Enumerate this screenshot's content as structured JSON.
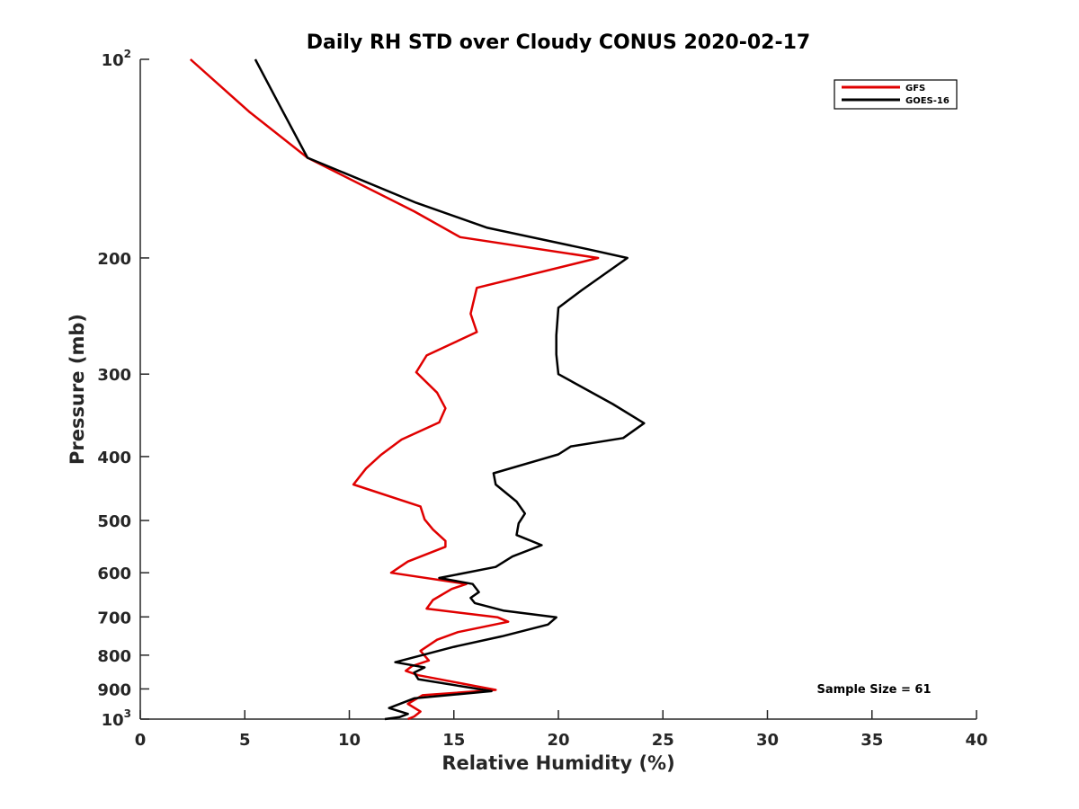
{
  "chart_data": {
    "type": "line",
    "title": "Daily RH STD over Cloudy CONUS 2020-02-17",
    "xlabel": "Relative Humidity (%)",
    "ylabel": "Pressure (mb)",
    "xlim": [
      0,
      40
    ],
    "ylim": [
      100,
      1000
    ],
    "y_scale": "log",
    "y_reversed": true,
    "grid": false,
    "legend_position": "top-right",
    "x_ticks": [
      0,
      5,
      10,
      15,
      20,
      25,
      30,
      35,
      40
    ],
    "x_tick_labels": [
      "0",
      "5",
      "10",
      "15",
      "20",
      "25",
      "30",
      "35",
      "40"
    ],
    "y_ticks": [
      {
        "value": 100,
        "base": "10",
        "exp": "2"
      },
      {
        "value": 200,
        "label": "200"
      },
      {
        "value": 300,
        "label": "300"
      },
      {
        "value": 400,
        "label": "400"
      },
      {
        "value": 500,
        "label": "500"
      },
      {
        "value": 600,
        "label": "600"
      },
      {
        "value": 700,
        "label": "700"
      },
      {
        "value": 800,
        "label": "800"
      },
      {
        "value": 900,
        "label": "900"
      },
      {
        "value": 1000,
        "base": "10",
        "exp": "3"
      }
    ],
    "annotation": "Sample Size = 61",
    "series": [
      {
        "name": "GFS",
        "color": "#e00000",
        "points": [
          [
            2.4,
            100
          ],
          [
            5.2,
            120
          ],
          [
            8.0,
            141
          ],
          [
            13.1,
            170
          ],
          [
            15.3,
            186
          ],
          [
            21.9,
            200
          ],
          [
            16.1,
            222
          ],
          [
            15.8,
            243
          ],
          [
            16.1,
            259
          ],
          [
            13.7,
            281
          ],
          [
            13.2,
            298
          ],
          [
            14.2,
            320
          ],
          [
            14.6,
            338
          ],
          [
            14.3,
            355
          ],
          [
            12.5,
            377
          ],
          [
            11.5,
            398
          ],
          [
            10.8,
            417
          ],
          [
            10.2,
            441
          ],
          [
            13.4,
            476
          ],
          [
            13.6,
            498
          ],
          [
            14.0,
            516
          ],
          [
            14.6,
            537
          ],
          [
            14.6,
            548
          ],
          [
            12.8,
            577
          ],
          [
            12.0,
            600
          ],
          [
            15.6,
            624
          ],
          [
            14.9,
            635
          ],
          [
            14.0,
            660
          ],
          [
            13.7,
            680
          ],
          [
            17.1,
            701
          ],
          [
            17.6,
            712
          ],
          [
            15.2,
            738
          ],
          [
            14.2,
            758
          ],
          [
            13.4,
            788
          ],
          [
            13.8,
            815
          ],
          [
            13.0,
            831
          ],
          [
            12.7,
            845
          ],
          [
            13.3,
            858
          ],
          [
            17.0,
            903
          ],
          [
            13.5,
            920
          ],
          [
            12.8,
            948
          ],
          [
            13.4,
            974
          ],
          [
            13.1,
            991
          ],
          [
            12.8,
            1000
          ]
        ]
      },
      {
        "name": "GOES-16",
        "color": "#000000",
        "points": [
          [
            5.5,
            100
          ],
          [
            6.7,
            118
          ],
          [
            8.0,
            141
          ],
          [
            13.2,
            165
          ],
          [
            16.6,
            180
          ],
          [
            21.4,
            194
          ],
          [
            23.3,
            200
          ],
          [
            21.1,
            224
          ],
          [
            20.0,
            238
          ],
          [
            19.9,
            262
          ],
          [
            19.9,
            280
          ],
          [
            20.0,
            300
          ],
          [
            22.6,
            333
          ],
          [
            24.1,
            356
          ],
          [
            23.1,
            375
          ],
          [
            20.6,
            386
          ],
          [
            20.0,
            397
          ],
          [
            16.9,
            424
          ],
          [
            17.0,
            441
          ],
          [
            18.0,
            468
          ],
          [
            18.4,
            488
          ],
          [
            18.1,
            505
          ],
          [
            18.0,
            526
          ],
          [
            19.2,
            545
          ],
          [
            17.8,
            567
          ],
          [
            17.0,
            588
          ],
          [
            14.3,
            611
          ],
          [
            15.9,
            624
          ],
          [
            16.2,
            642
          ],
          [
            15.8,
            655
          ],
          [
            16.0,
            667
          ],
          [
            17.4,
            685
          ],
          [
            19.9,
            701
          ],
          [
            19.5,
            719
          ],
          [
            17.3,
            749
          ],
          [
            15.0,
            777
          ],
          [
            12.2,
            820
          ],
          [
            13.6,
            835
          ],
          [
            13.1,
            850
          ],
          [
            13.3,
            870
          ],
          [
            16.8,
            907
          ],
          [
            13.1,
            930
          ],
          [
            11.9,
            962
          ],
          [
            12.8,
            982
          ],
          [
            12.4,
            993
          ],
          [
            11.7,
            1000
          ]
        ]
      }
    ]
  }
}
